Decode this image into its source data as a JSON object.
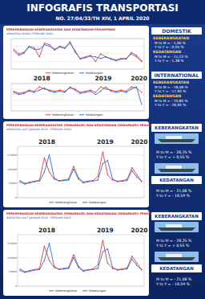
{
  "header": {
    "title": "INFOGRAFIS  TRANSPORTASI",
    "subtitle": "NO. 27/04/33/TH XIV, 1 APRIL 2020"
  },
  "panels": [
    {
      "title": "PERKEMBANGAN KEBERANGKATAN DAN KEDATANGAN PENUMPANG",
      "subtitle": "ANGKUTAN UDARA (FEBRUARI 2020)",
      "stats": [
        {
          "heading": "DOMESTIK",
          "groups": [
            {
              "label": "KEBERANGKATAN",
              "lines": [
                "M to M  = - 1,06 %",
                "Y to Y  = - 0,05 %"
              ]
            },
            {
              "label": "KEDATANGAN",
              "lines": [
                "M to M  = - 11,23 %",
                "Y to Y  = - 1,38 %"
              ]
            }
          ]
        },
        {
          "heading": "INTERNATIONAL",
          "groups": [
            {
              "label": "KEBERANGKATAN",
              "lines": [
                "M to M  = - 18,48 %",
                "Y to Y  = - 17,93 %"
              ]
            },
            {
              "label": "KEDATANGAN",
              "lines": [
                "M to M  = - 70,80 %",
                "Y to Y  = - 26,93 %"
              ]
            }
          ]
        }
      ]
    },
    {
      "title": "PERKEMBANGAN KEBERANGKATAN (EMBARKASI) DAN KEDATANGAN (DEBARKASI) PENUMPANG",
      "subtitle": "ANGKUTAN LAUT (JANUARI 2018 - FEBRUARI 2020)",
      "stats": [
        {
          "groups": [
            {
              "label": "KEBERANGKATAN",
              "lines": [
                "M to M  = - 28,25 %",
                "Y to Y  = + 0,55 %"
              ]
            },
            {
              "label": "KEDATANGAN",
              "lines": [
                "M to M  = - 21,08 %",
                "Y to Y  = - 18,59 %"
              ]
            }
          ]
        }
      ]
    },
    {
      "title": "PERKEMBANGAN KEBERANGKATAN (EMBARKASI) DAN KEDATANGAN (DEBARKASI) PENUMPANG",
      "subtitle": "ANGKUTAN LAUT (JANUARI 2018 - FEBRUARI 2020)",
      "stats": [
        {
          "groups": [
            {
              "label": "KEBERANGKATAN",
              "lines": [
                "M to M  = - 28,25 %",
                "Y to Y  = + 0,55 %"
              ]
            },
            {
              "label": "KEDATANGAN",
              "lines": [
                "M to M  = - 21,08 %",
                "Y to Y  = - 18,59 %"
              ]
            }
          ]
        }
      ]
    }
  ],
  "chart_data": [
    {
      "type": "line",
      "categories": [
        null,
        null,
        null,
        null,
        null,
        null,
        null,
        null,
        null,
        null,
        null,
        null,
        null,
        null,
        null,
        null,
        null,
        null,
        null,
        null,
        null,
        null,
        null,
        null,
        null,
        null
      ],
      "series": [
        {
          "name": "Keberangkatan",
          "color": "#e8403a",
          "values": [
            380000,
            350000,
            360000,
            400000,
            390000,
            330000,
            420000,
            410000,
            380000,
            400000,
            390000,
            430000,
            360000,
            320000,
            330000,
            340000,
            300000,
            350000,
            330000,
            320000,
            310000,
            320000,
            320000,
            350000,
            330000,
            300000
          ]
        },
        {
          "name": "Kedatangan",
          "color": "#2e6fd8",
          "values": [
            370000,
            340000,
            355000,
            395000,
            380000,
            380000,
            410000,
            400000,
            375000,
            395000,
            385000,
            420000,
            370000,
            315000,
            325000,
            335000,
            330000,
            320000,
            330000,
            315000,
            305000,
            315000,
            315000,
            360000,
            340000,
            305000
          ]
        }
      ],
      "ylim": [
        250000,
        450000
      ],
      "yticks": [
        250000,
        300000,
        350000,
        400000,
        450000
      ],
      "grid": true,
      "tick_labels": false,
      "legend": "bottom"
    },
    {
      "type": "line",
      "annotations": [
        "2018",
        "2019",
        "2020"
      ],
      "categories": [
        null,
        null,
        null,
        null,
        null,
        null,
        null,
        null,
        null,
        null,
        null,
        null,
        null,
        null,
        null,
        null,
        null,
        null,
        null,
        null,
        null,
        null,
        null,
        null,
        null,
        null
      ],
      "series": [
        {
          "name": "Keberangkatan",
          "color": "#e8403a",
          "values": [
            18000,
            16000,
            17000,
            19000,
            18000,
            22000,
            20000,
            19000,
            18000,
            19000,
            18000,
            21000,
            20000,
            17000,
            18000,
            19000,
            17000,
            22000,
            20000,
            19000,
            18000,
            19000,
            18000,
            22000,
            21000,
            17000
          ]
        },
        {
          "name": "Kedatangan",
          "color": "#2e6fd8",
          "values": [
            17000,
            15000,
            16000,
            18000,
            17000,
            19000,
            21000,
            18000,
            17000,
            18000,
            17000,
            22000,
            19000,
            16000,
            17000,
            18000,
            15000,
            18000,
            22000,
            18000,
            17000,
            18000,
            17000,
            20000,
            22000,
            6000
          ]
        }
      ],
      "ylim": [
        0,
        25000
      ],
      "yticks": [
        0,
        5000,
        10000,
        15000,
        20000,
        25000
      ],
      "grid": true,
      "tick_labels": false,
      "legend": "bottom"
    },
    {
      "type": "line",
      "annotations": [
        "2018",
        "2019",
        "2020"
      ],
      "categories": [
        null,
        null,
        null,
        null,
        null,
        null,
        null,
        null,
        null,
        null,
        null,
        null,
        null,
        null,
        null,
        null,
        null,
        null,
        null,
        null,
        null,
        null,
        null,
        null,
        null,
        null
      ],
      "series": [
        {
          "name": "Keberangkatan",
          "color": "#e8403a",
          "values": [
            60000,
            50000,
            55000,
            58000,
            62000,
            140000,
            90000,
            65000,
            60000,
            62000,
            66000,
            110000,
            70000,
            55000,
            58000,
            60000,
            75000,
            160000,
            80000,
            62000,
            58000,
            60000,
            64000,
            105000,
            80000,
            57000
          ]
        },
        {
          "name": "Kedatangan",
          "color": "#2e6fd8",
          "values": [
            55000,
            48000,
            52000,
            56000,
            58000,
            90000,
            150000,
            70000,
            58000,
            60000,
            62000,
            100000,
            65000,
            52000,
            56000,
            58000,
            62000,
            120000,
            130000,
            66000,
            56000,
            58000,
            60000,
            95000,
            72000,
            57000
          ]
        }
      ],
      "ylim": [
        0,
        180000
      ],
      "yticks": [
        0,
        50000,
        100000,
        150000
      ],
      "grid": true,
      "tick_labels": "y",
      "legend": "bottom"
    },
    {
      "type": "line",
      "annotations": [
        "2018",
        "2019",
        "2020"
      ],
      "categories": [
        null,
        null,
        null,
        null,
        null,
        null,
        null,
        null,
        null,
        null,
        null,
        null,
        null,
        null,
        null,
        null,
        null,
        null,
        null,
        null,
        null,
        null,
        null,
        null,
        null,
        null
      ],
      "series": [
        {
          "name": "Keberangkatan",
          "color": "#e8403a",
          "values": [
            60000,
            50000,
            55000,
            58000,
            62000,
            140000,
            90000,
            65000,
            60000,
            62000,
            66000,
            110000,
            70000,
            55000,
            58000,
            60000,
            75000,
            160000,
            80000,
            62000,
            58000,
            60000,
            64000,
            105000,
            80000,
            57000
          ]
        },
        {
          "name": "Kedatangan",
          "color": "#2e6fd8",
          "values": [
            55000,
            48000,
            52000,
            56000,
            58000,
            90000,
            150000,
            70000,
            58000,
            60000,
            62000,
            100000,
            65000,
            52000,
            56000,
            58000,
            62000,
            120000,
            130000,
            66000,
            56000,
            58000,
            60000,
            95000,
            72000,
            57000
          ]
        }
      ],
      "ylim": [
        0,
        180000
      ],
      "yticks": [
        0,
        50000,
        100000,
        150000
      ],
      "grid": true,
      "tick_labels": "y",
      "legend": "bottom"
    }
  ]
}
